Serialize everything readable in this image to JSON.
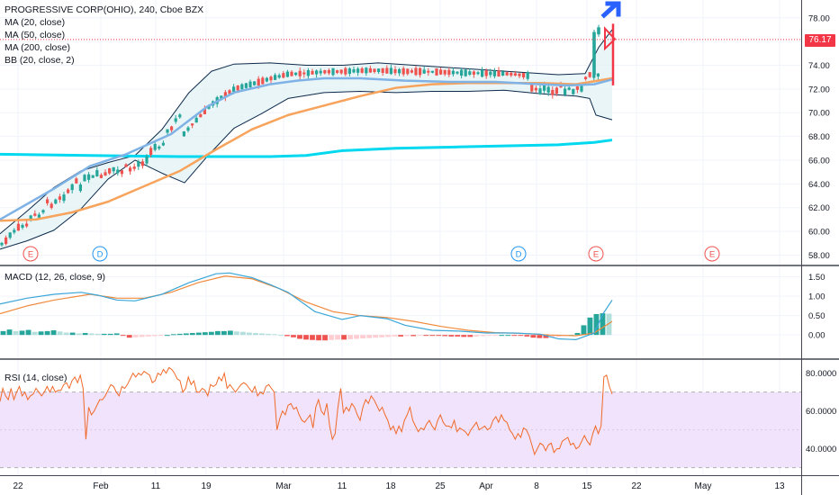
{
  "legend": {
    "title": "PROGRESSIVE CORP(OHIO), 240, Cboe BZX",
    "ma20": "MA (20, close)",
    "ma50": "MA (50, close)",
    "ma200": "MA (200, close)",
    "bb": "BB (20, close, 2)",
    "macd": "MACD (12, 26, close, 9)",
    "rsi": "RSI (14, close)"
  },
  "price_tag": "76.17",
  "colors": {
    "up": "#26a69a",
    "down": "#ef5350",
    "ma20": "#7fb2e5",
    "ma50": "#f7a35c",
    "ma200": "#00d8f0",
    "bb": "#0d2a4a",
    "macd_line": "#3aa6d8",
    "signal_line": "#f08a3c",
    "rsi": "#f06a2a",
    "rsi_band": "#f1e3fb",
    "arrow_up": "#2962ff",
    "arrow_down": "#f23645"
  },
  "event_markers": [
    {
      "label": "E",
      "kind": "earnings"
    },
    {
      "label": "D",
      "kind": "dividend"
    },
    {
      "label": "D",
      "kind": "dividend"
    },
    {
      "label": "E",
      "kind": "earnings"
    },
    {
      "label": "E",
      "kind": "earnings"
    }
  ],
  "chart_data": [
    {
      "type": "candlestick",
      "title": "PROGRESSIVE CORP(OHIO), 240, Cboe BZX",
      "y_ticks": [
        58,
        60,
        62,
        64,
        66,
        68,
        70,
        72,
        74,
        76,
        78
      ],
      "ylim": [
        57.2,
        79.5
      ],
      "x_ticks": [
        "22",
        "Feb",
        "11",
        "19",
        "Mar",
        "11",
        "18",
        "25",
        "Apr",
        "8",
        "15",
        "22",
        "May",
        "13"
      ],
      "last_price": 76.17,
      "series": [
        {
          "name": "MA (20, close)",
          "points": [
            [
              0,
              61.0
            ],
            [
              30,
              62.3
            ],
            [
              60,
              63.6
            ],
            [
              100,
              65.5
            ],
            [
              140,
              66.5
            ],
            [
              190,
              68.2
            ],
            [
              230,
              70.5
            ],
            [
              260,
              71.7
            ],
            [
              300,
              72.4
            ],
            [
              330,
              72.7
            ],
            [
              360,
              72.9
            ],
            [
              400,
              72.9
            ],
            [
              450,
              72.7
            ],
            [
              500,
              72.6
            ],
            [
              550,
              72.6
            ],
            [
              600,
              72.4
            ],
            [
              630,
              72.3
            ],
            [
              660,
              72.4
            ],
            [
              680,
              72.8
            ]
          ]
        },
        {
          "name": "MA (50, close)",
          "points": [
            [
              0,
              60.9
            ],
            [
              40,
              61.0
            ],
            [
              80,
              61.6
            ],
            [
              120,
              62.5
            ],
            [
              160,
              63.8
            ],
            [
              200,
              65.1
            ],
            [
              240,
              66.9
            ],
            [
              280,
              68.6
            ],
            [
              320,
              69.8
            ],
            [
              360,
              70.6
            ],
            [
              400,
              71.4
            ],
            [
              440,
              72.1
            ],
            [
              480,
              72.4
            ],
            [
              520,
              72.5
            ],
            [
              560,
              72.5
            ],
            [
              600,
              72.5
            ],
            [
              640,
              72.4
            ],
            [
              680,
              72.9
            ]
          ]
        },
        {
          "name": "MA (200, close)",
          "points": [
            [
              0,
              66.5
            ],
            [
              100,
              66.4
            ],
            [
              200,
              66.3
            ],
            [
              300,
              66.3
            ],
            [
              340,
              66.4
            ],
            [
              380,
              66.8
            ],
            [
              440,
              67.0
            ],
            [
              500,
              67.1
            ],
            [
              560,
              67.2
            ],
            [
              620,
              67.3
            ],
            [
              660,
              67.5
            ],
            [
              680,
              67.7
            ]
          ]
        },
        {
          "name": "BB upper",
          "points": [
            [
              0,
              59.8
            ],
            [
              30,
              61.7
            ],
            [
              60,
              63.7
            ],
            [
              90,
              65.1
            ],
            [
              120,
              65.8
            ],
            [
              150,
              66.4
            ],
            [
              180,
              68.6
            ],
            [
              210,
              71.7
            ],
            [
              235,
              73.5
            ],
            [
              260,
              74.1
            ],
            [
              300,
              74.2
            ],
            [
              340,
              74.0
            ],
            [
              380,
              74.0
            ],
            [
              420,
              74.2
            ],
            [
              460,
              74.0
            ],
            [
              500,
              73.8
            ],
            [
              540,
              73.6
            ],
            [
              580,
              73.4
            ],
            [
              620,
              73.2
            ],
            [
              650,
              73.3
            ],
            [
              665,
              75.5
            ],
            [
              680,
              77.0
            ]
          ]
        },
        {
          "name": "BB lower",
          "points": [
            [
              0,
              58.5
            ],
            [
              30,
              59.2
            ],
            [
              60,
              60.1
            ],
            [
              90,
              61.9
            ],
            [
              120,
              64.4
            ],
            [
              150,
              66.0
            ],
            [
              180,
              64.9
            ],
            [
              205,
              64.1
            ],
            [
              230,
              66.3
            ],
            [
              260,
              68.7
            ],
            [
              290,
              69.9
            ],
            [
              320,
              71.2
            ],
            [
              360,
              71.7
            ],
            [
              400,
              71.8
            ],
            [
              440,
              71.7
            ],
            [
              480,
              71.8
            ],
            [
              520,
              71.8
            ],
            [
              560,
              71.9
            ],
            [
              600,
              71.6
            ],
            [
              640,
              71.4
            ],
            [
              655,
              71.2
            ],
            [
              662,
              69.8
            ],
            [
              680,
              69.4
            ]
          ]
        }
      ]
    },
    {
      "type": "bar",
      "title": "MACD (12, 26, close, 9)",
      "y_ticks": [
        0.0,
        0.5,
        1.0,
        1.5
      ],
      "ylim": [
        -0.6,
        1.77
      ],
      "histogram": [
        0.1,
        0.14,
        0.1,
        0.11,
        0.13,
        0.08,
        0.09,
        0.1,
        0.12,
        0.09,
        0.06,
        0.06,
        0.04,
        0.05,
        0.04,
        0.03,
        0.03,
        0.03,
        0.04,
        -0.02,
        -0.07,
        -0.06,
        -0.05,
        -0.04,
        -0.03,
        -0.01,
        0.0,
        0.02,
        0.03,
        0.04,
        0.05,
        0.06,
        0.07,
        0.08,
        0.1,
        0.1,
        0.11,
        0.09,
        0.08,
        0.06,
        0.05,
        0.04,
        0.03,
        0.02,
        0.0,
        -0.03,
        -0.06,
        -0.1,
        -0.12,
        -0.13,
        -0.14,
        -0.14,
        -0.13,
        -0.12,
        -0.12,
        -0.11,
        -0.1,
        -0.09,
        -0.08,
        -0.07,
        -0.06,
        -0.05,
        -0.04,
        -0.04,
        -0.03,
        -0.03,
        -0.02,
        -0.02,
        -0.02,
        -0.02,
        -0.03,
        -0.04,
        -0.04,
        -0.05,
        -0.05,
        -0.04,
        -0.03,
        -0.02,
        -0.01,
        0.0,
        0.0,
        -0.01,
        -0.02,
        -0.04,
        -0.07,
        -0.08,
        -0.08,
        -0.07,
        -0.05,
        -0.03,
        0.0,
        0.05,
        0.25,
        0.45,
        0.54,
        0.56,
        0.55
      ],
      "series": [
        {
          "name": "MACD",
          "points": [
            [
              0,
              0.8
            ],
            [
              30,
              0.95
            ],
            [
              60,
              1.05
            ],
            [
              90,
              1.1
            ],
            [
              110,
              1.02
            ],
            [
              130,
              0.9
            ],
            [
              150,
              0.88
            ],
            [
              180,
              1.05
            ],
            [
              210,
              1.35
            ],
            [
              240,
              1.58
            ],
            [
              255,
              1.6
            ],
            [
              280,
              1.48
            ],
            [
              300,
              1.3
            ],
            [
              320,
              1.1
            ],
            [
              350,
              0.6
            ],
            [
              380,
              0.4
            ],
            [
              400,
              0.5
            ],
            [
              430,
              0.42
            ],
            [
              450,
              0.25
            ],
            [
              480,
              0.12
            ],
            [
              510,
              0.1
            ],
            [
              540,
              0.05
            ],
            [
              570,
              0.05
            ],
            [
              600,
              0.02
            ],
            [
              620,
              -0.1
            ],
            [
              640,
              -0.12
            ],
            [
              660,
              0.05
            ],
            [
              670,
              0.55
            ],
            [
              680,
              0.9
            ]
          ]
        },
        {
          "name": "Signal",
          "points": [
            [
              0,
              0.55
            ],
            [
              30,
              0.75
            ],
            [
              60,
              0.9
            ],
            [
              100,
              1.05
            ],
            [
              130,
              0.95
            ],
            [
              160,
              0.95
            ],
            [
              190,
              1.1
            ],
            [
              220,
              1.35
            ],
            [
              250,
              1.52
            ],
            [
              280,
              1.45
            ],
            [
              310,
              1.2
            ],
            [
              340,
              0.85
            ],
            [
              370,
              0.6
            ],
            [
              400,
              0.5
            ],
            [
              430,
              0.45
            ],
            [
              460,
              0.35
            ],
            [
              490,
              0.22
            ],
            [
              520,
              0.12
            ],
            [
              550,
              0.06
            ],
            [
              580,
              0.04
            ],
            [
              610,
              0.0
            ],
            [
              640,
              -0.02
            ],
            [
              660,
              0.05
            ],
            [
              680,
              0.35
            ]
          ]
        }
      ]
    },
    {
      "type": "line",
      "title": "RSI (14, close)",
      "y_ticks": [
        40.0,
        60.0,
        80.0
      ],
      "ylim": [
        26,
        87
      ],
      "band": [
        30,
        70
      ],
      "series": [
        {
          "name": "RSI",
          "values": [
            65,
            72,
            68,
            66,
            72,
            66,
            70,
            73,
            68,
            70,
            66,
            68,
            69,
            72,
            70,
            68,
            70,
            73,
            70,
            73,
            70,
            71,
            71,
            74,
            75,
            72,
            76,
            78,
            75,
            79,
            72,
            45,
            62,
            58,
            60,
            63,
            66,
            66,
            68,
            71,
            74,
            73,
            70,
            68,
            73,
            72,
            74,
            77,
            80,
            78,
            80,
            79,
            81,
            80,
            79,
            75,
            76,
            80,
            79,
            82,
            80,
            83,
            82,
            80,
            77,
            76,
            70,
            72,
            78,
            74,
            76,
            70,
            70,
            72,
            71,
            68,
            74,
            73,
            74,
            78,
            76,
            80,
            72,
            74,
            72,
            70,
            72,
            74,
            75,
            74,
            72,
            70,
            73,
            68,
            70,
            69,
            73,
            74,
            72,
            70,
            50,
            56,
            60,
            58,
            63,
            64,
            61,
            62,
            58,
            55,
            54,
            56,
            58,
            51,
            62,
            66,
            60,
            58,
            64,
            52,
            45,
            48,
            62,
            72,
            59,
            62,
            60,
            64,
            62,
            58,
            55,
            62,
            66,
            64,
            68,
            66,
            63,
            60,
            62,
            58,
            55,
            50,
            52,
            48,
            52,
            49,
            55,
            58,
            62,
            55,
            52,
            49,
            51,
            50,
            53,
            55,
            52,
            50,
            55,
            58,
            54,
            52,
            52,
            51,
            55,
            49,
            51,
            50,
            49,
            47,
            50,
            52,
            54,
            50,
            51,
            52,
            50,
            51,
            55,
            57,
            54,
            58,
            55,
            54,
            50,
            48,
            45,
            48,
            46,
            51,
            50,
            47,
            42,
            37,
            40,
            43,
            42,
            39,
            42,
            43,
            38,
            40,
            40,
            44,
            45,
            46,
            42,
            43,
            40,
            41,
            44,
            47,
            44,
            42,
            48,
            52,
            48,
            52,
            78,
            79,
            73,
            69
          ]
        }
      ]
    }
  ]
}
